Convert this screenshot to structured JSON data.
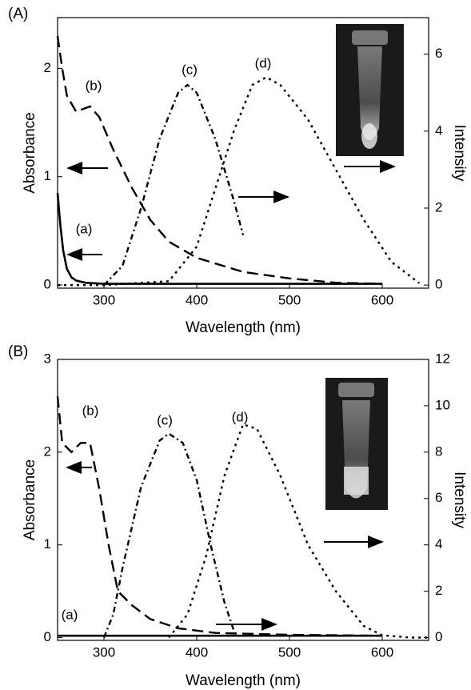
{
  "chart_data": [
    {
      "type": "line",
      "panel_label": "(A)",
      "x_label": "Wavelength (nm)",
      "y_label": "Absorbance",
      "y2_label": "Intensity",
      "xlim": [
        250,
        650
      ],
      "xticks": [
        300,
        400,
        500,
        600
      ],
      "ylim": [
        -0.03,
        2.47
      ],
      "yticks": [
        0,
        1,
        2
      ],
      "y2lim": [
        -0.08,
        6.95
      ],
      "y2ticks": [
        0,
        2,
        4,
        6
      ],
      "series": [
        {
          "name": "(a)",
          "color": "#000000",
          "style": "solid",
          "x": [
            250,
            253,
            256,
            260,
            265,
            270,
            280,
            300,
            400,
            500,
            600
          ],
          "values": [
            0.85,
            0.55,
            0.32,
            0.15,
            0.07,
            0.04,
            0.02,
            0.01,
            0.01,
            0.01,
            0.01
          ]
        },
        {
          "name": "(b)",
          "color": "#000000",
          "style": "dashed",
          "x": [
            250,
            255,
            260,
            270,
            285,
            295,
            310,
            330,
            350,
            370,
            400,
            450,
            500,
            550,
            600
          ],
          "values": [
            2.3,
            2.0,
            1.75,
            1.6,
            1.65,
            1.55,
            1.25,
            0.9,
            0.6,
            0.4,
            0.25,
            0.12,
            0.06,
            0.02,
            0.01
          ]
        },
        {
          "name": "(c)",
          "color": "#000000",
          "style": "dashdot",
          "axis": "y2",
          "x": [
            300,
            320,
            340,
            360,
            380,
            390,
            400,
            420,
            440,
            450
          ],
          "values": [
            0,
            0.5,
            2,
            3.8,
            5,
            5.2,
            5.0,
            3.8,
            2.2,
            1.3
          ]
        },
        {
          "name": "(d)",
          "color": "#000000",
          "style": "dotted",
          "axis": "y2",
          "x": [
            250,
            300,
            370,
            400,
            420,
            440,
            460,
            475,
            490,
            520,
            550,
            580,
            610,
            640
          ],
          "values": [
            0,
            0,
            0.1,
            1,
            2.5,
            4,
            5.2,
            5.4,
            5.2,
            4.3,
            3,
            1.7,
            0.6,
            0.05
          ]
        }
      ]
    },
    {
      "type": "line",
      "panel_label": "(B)",
      "x_label": "Wavelength (nm)",
      "y_label": "Absorbance",
      "y2_label": "Intensity",
      "xlim": [
        250,
        650
      ],
      "xticks": [
        300,
        400,
        500,
        600
      ],
      "ylim": [
        -0.03,
        3
      ],
      "yticks": [
        0,
        1,
        2,
        3
      ],
      "y2lim": [
        -0.12,
        12
      ],
      "y2ticks": [
        0,
        2,
        4,
        6,
        8,
        10,
        12
      ],
      "series": [
        {
          "name": "(a)",
          "color": "#000000",
          "style": "solid",
          "x": [
            250,
            300,
            400,
            500,
            600
          ],
          "values": [
            0.02,
            0.02,
            0.02,
            0.02,
            0.02
          ]
        },
        {
          "name": "(b)",
          "color": "#000000",
          "style": "dashed",
          "x": [
            250,
            255,
            265,
            275,
            285,
            295,
            305,
            315,
            330,
            350,
            380,
            420,
            500,
            600
          ],
          "values": [
            2.6,
            2.1,
            2.0,
            2.1,
            2.1,
            1.6,
            1.0,
            0.5,
            0.35,
            0.2,
            0.1,
            0.05,
            0.03,
            0.02
          ]
        },
        {
          "name": "(c)",
          "color": "#000000",
          "style": "dashdot",
          "axis": "y2",
          "x": [
            300,
            310,
            320,
            340,
            360,
            370,
            385,
            400,
            415,
            430,
            440
          ],
          "values": [
            0,
            1,
            3,
            6.5,
            8.5,
            8.8,
            8.4,
            6.8,
            4,
            1.5,
            0.3
          ]
        },
        {
          "name": "(d)",
          "color": "#000000",
          "style": "dotted",
          "axis": "y2",
          "x": [
            370,
            390,
            410,
            430,
            450,
            465,
            490,
            520,
            550,
            580,
            600,
            630,
            650
          ],
          "values": [
            0,
            1,
            3.5,
            7,
            9.2,
            9,
            7,
            4,
            2,
            0.5,
            0.1,
            0,
            0
          ]
        }
      ]
    }
  ]
}
